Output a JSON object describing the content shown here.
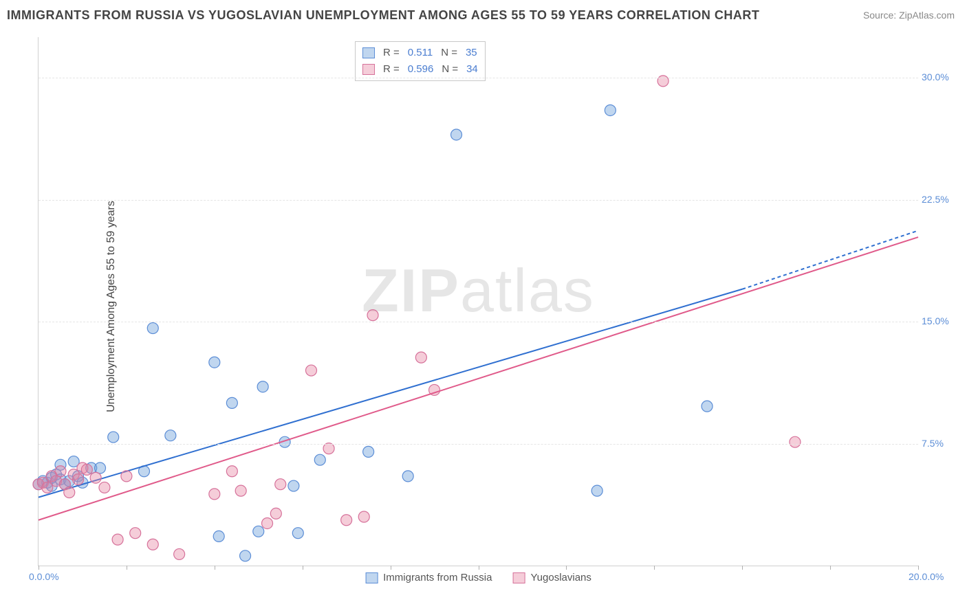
{
  "title": "IMMIGRANTS FROM RUSSIA VS YUGOSLAVIAN UNEMPLOYMENT AMONG AGES 55 TO 59 YEARS CORRELATION CHART",
  "source": "Source: ZipAtlas.com",
  "ylabel": "Unemployment Among Ages 55 to 59 years",
  "watermark_left": "ZIP",
  "watermark_right": "atlas",
  "chart": {
    "type": "scatter",
    "xlim": [
      0,
      20
    ],
    "ylim": [
      0,
      32.5
    ],
    "x_ticks_labeled": [
      0,
      20
    ],
    "x_ticks_minor": [
      2,
      4,
      6,
      8,
      10,
      12,
      14,
      16,
      18
    ],
    "x_tick_format": "{v}.0%",
    "y_ticks": [
      7.5,
      15.0,
      22.5,
      30.0
    ],
    "y_tick_format": "{v}%",
    "grid_color": "#e5e5e5",
    "background_color": "#ffffff",
    "axis_color": "#d0d0d0",
    "series": [
      {
        "name": "Immigrants from Russia",
        "color_fill": "rgba(115,165,220,0.45)",
        "color_stroke": "#5b8dd6",
        "marker_radius": 8,
        "R": "0.511",
        "N": "35",
        "trend": {
          "x1": 0,
          "y1": 4.2,
          "x2": 16,
          "y2": 17.0,
          "color": "#2f6fd0",
          "width": 2,
          "extend_dashed_to_x": 20,
          "extend_y": 20.6
        },
        "points": [
          [
            0.0,
            5.0
          ],
          [
            0.1,
            5.2
          ],
          [
            0.2,
            5.1
          ],
          [
            0.3,
            4.9
          ],
          [
            0.3,
            5.4
          ],
          [
            0.4,
            5.6
          ],
          [
            0.5,
            6.2
          ],
          [
            0.5,
            5.3
          ],
          [
            0.6,
            5.0
          ],
          [
            0.7,
            5.2
          ],
          [
            0.8,
            6.4
          ],
          [
            0.9,
            5.5
          ],
          [
            1.0,
            5.1
          ],
          [
            1.2,
            6.0
          ],
          [
            1.4,
            6.0
          ],
          [
            1.7,
            7.9
          ],
          [
            2.4,
            5.8
          ],
          [
            2.6,
            14.6
          ],
          [
            3.0,
            8.0
          ],
          [
            4.0,
            12.5
          ],
          [
            4.1,
            1.8
          ],
          [
            4.4,
            10.0
          ],
          [
            4.7,
            0.6
          ],
          [
            5.0,
            2.1
          ],
          [
            5.1,
            11.0
          ],
          [
            5.6,
            7.6
          ],
          [
            5.8,
            4.9
          ],
          [
            5.9,
            2.0
          ],
          [
            6.4,
            6.5
          ],
          [
            7.5,
            7.0
          ],
          [
            8.4,
            5.5
          ],
          [
            9.5,
            26.5
          ],
          [
            12.7,
            4.6
          ],
          [
            13.0,
            28.0
          ],
          [
            15.2,
            9.8
          ]
        ]
      },
      {
        "name": "Yugoslavians",
        "color_fill": "rgba(230,130,160,0.40)",
        "color_stroke": "#d6719a",
        "marker_radius": 8,
        "R": "0.596",
        "N": "34",
        "trend": {
          "x1": 0,
          "y1": 2.8,
          "x2": 20,
          "y2": 20.2,
          "color": "#e05a8a",
          "width": 2
        },
        "points": [
          [
            0.0,
            5.0
          ],
          [
            0.1,
            5.1
          ],
          [
            0.2,
            4.8
          ],
          [
            0.3,
            5.5
          ],
          [
            0.4,
            5.2
          ],
          [
            0.5,
            5.8
          ],
          [
            0.6,
            5.0
          ],
          [
            0.7,
            4.5
          ],
          [
            0.8,
            5.6
          ],
          [
            0.9,
            5.3
          ],
          [
            1.0,
            6.0
          ],
          [
            1.1,
            5.9
          ],
          [
            1.3,
            5.4
          ],
          [
            1.5,
            4.8
          ],
          [
            1.8,
            1.6
          ],
          [
            2.0,
            5.5
          ],
          [
            2.2,
            2.0
          ],
          [
            2.6,
            1.3
          ],
          [
            3.2,
            0.7
          ],
          [
            4.0,
            4.4
          ],
          [
            4.4,
            5.8
          ],
          [
            4.6,
            4.6
          ],
          [
            5.2,
            2.6
          ],
          [
            5.4,
            3.2
          ],
          [
            5.5,
            5.0
          ],
          [
            6.2,
            12.0
          ],
          [
            6.6,
            7.2
          ],
          [
            7.0,
            2.8
          ],
          [
            7.4,
            3.0
          ],
          [
            7.6,
            15.4
          ],
          [
            8.7,
            12.8
          ],
          [
            9.0,
            10.8
          ],
          [
            14.2,
            29.8
          ],
          [
            17.2,
            7.6
          ]
        ]
      }
    ]
  },
  "legend_bottom": [
    {
      "label": "Immigrants from Russia",
      "swatch": "blue"
    },
    {
      "label": "Yugoslavians",
      "swatch": "pink"
    }
  ]
}
